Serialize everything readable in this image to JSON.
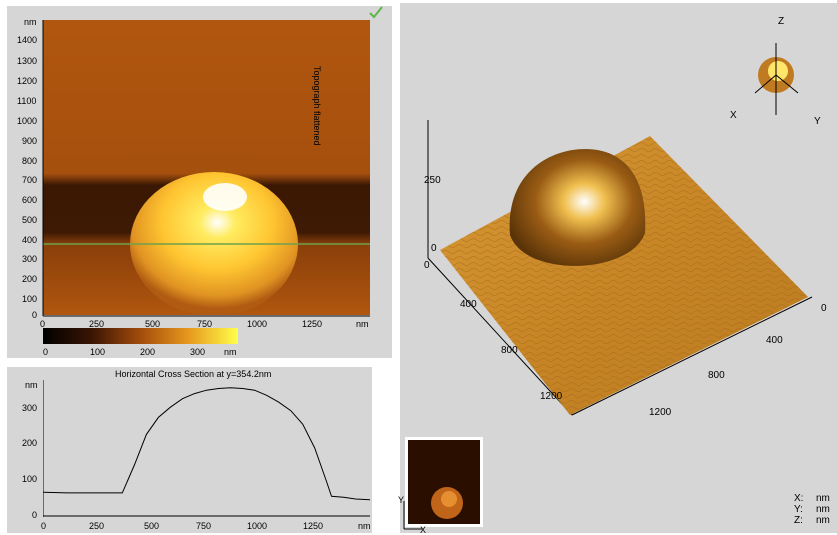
{
  "topograph": {
    "unit_y": "nm",
    "unit_x": "nm",
    "y_ticks": [
      "1400",
      "1300",
      "1200",
      "1100",
      "1000",
      "900",
      "800",
      "700",
      "600",
      "500",
      "400",
      "300",
      "200",
      "100",
      "0"
    ],
    "x_ticks": [
      "0",
      "250",
      "500",
      "750",
      "1000",
      "1250"
    ],
    "vertical_label": "Topograph flattened",
    "check_icon": "check-icon",
    "cursor_line_y_nm": 354.2,
    "colors": {
      "dark": "#2b0f00",
      "mid": "#b55a10",
      "bright": "#ffd22a",
      "line": "#6fa04a"
    }
  },
  "colorbar": {
    "ticks": [
      "0",
      "100",
      "200",
      "300"
    ],
    "unit": "nm"
  },
  "cross_section": {
    "title": "Horizontal Cross Section at y=354.2nm",
    "unit_y": "nm",
    "unit_x": "nm",
    "y_ticks": [
      "300",
      "200",
      "100",
      "0"
    ],
    "x_ticks": [
      "0",
      "250",
      "500",
      "750",
      "1000",
      "1250"
    ],
    "profile": {
      "x": [
        0,
        100,
        200,
        330,
        380,
        430,
        480,
        530,
        580,
        630,
        680,
        730,
        780,
        830,
        880,
        930,
        980,
        1030,
        1080,
        1130,
        1180,
        1200,
        1250,
        1300,
        1360
      ],
      "y": [
        70,
        68,
        68,
        68,
        150,
        240,
        290,
        320,
        345,
        360,
        370,
        375,
        377,
        375,
        370,
        355,
        335,
        310,
        270,
        200,
        100,
        58,
        55,
        50,
        48
      ]
    }
  },
  "view3d": {
    "z_tick": "250",
    "z_zero": "0",
    "left_axis_ticks": [
      "0",
      "400",
      "800",
      "1200"
    ],
    "right_axis_ticks": [
      "0",
      "400",
      "800",
      "1200"
    ],
    "orient_labels": {
      "z": "Z",
      "x": "X",
      "y": "Y"
    },
    "readout": {
      "x_label": "X:",
      "y_label": "Y:",
      "z_label": "Z:",
      "x_unit": "nm",
      "y_unit": "nm",
      "z_unit": "nm"
    },
    "thumb_axis": {
      "y": "Y",
      "x": "X"
    }
  }
}
